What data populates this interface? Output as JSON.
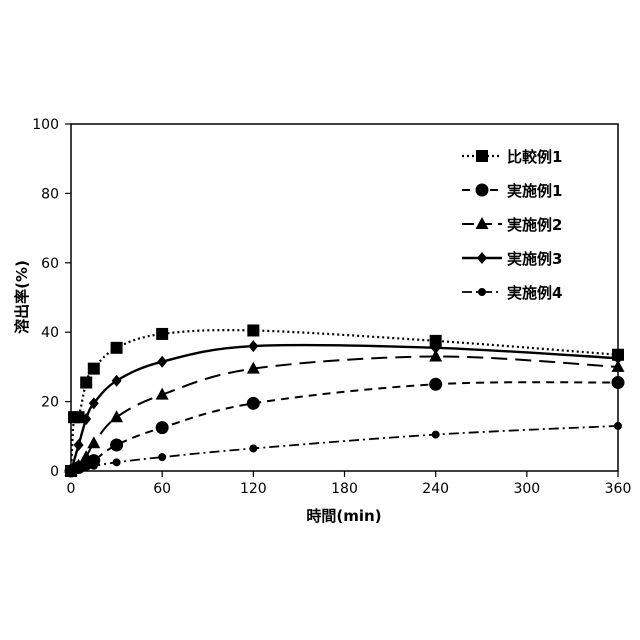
{
  "chart_data": {
    "type": "line",
    "title": "",
    "xlabel": "時間(min)",
    "ylabel": "溶出率(%)",
    "xlim": [
      0,
      360
    ],
    "ylim": [
      0,
      100
    ],
    "x_ticks": [
      0,
      60,
      120,
      180,
      240,
      300,
      360
    ],
    "y_ticks": [
      0,
      20,
      40,
      60,
      80,
      100
    ],
    "grid": false,
    "legend_position": "top-right",
    "series": [
      {
        "name": "比較例1",
        "marker": "square",
        "line": "dotted",
        "points": [
          [
            0,
            0
          ],
          [
            2,
            15.5
          ],
          [
            5,
            15.5
          ],
          [
            10,
            25.5
          ],
          [
            15,
            29.5
          ],
          [
            30,
            35.5
          ],
          [
            60,
            39.5
          ],
          [
            120,
            40.5
          ],
          [
            240,
            37.5
          ],
          [
            360,
            33.5
          ]
        ]
      },
      {
        "name": "実施例1",
        "marker": "circle",
        "line": "dashed",
        "points": [
          [
            0,
            0
          ],
          [
            5,
            1
          ],
          [
            10,
            2
          ],
          [
            15,
            3
          ],
          [
            30,
            7.5
          ],
          [
            60,
            12.5
          ],
          [
            120,
            19.5
          ],
          [
            240,
            25
          ],
          [
            360,
            25.5
          ]
        ]
      },
      {
        "name": "実施例2",
        "marker": "triangle",
        "line": "longdash",
        "points": [
          [
            0,
            0
          ],
          [
            5,
            1.5
          ],
          [
            10,
            4
          ],
          [
            15,
            8
          ],
          [
            30,
            15.5
          ],
          [
            60,
            22
          ],
          [
            120,
            29.5
          ],
          [
            240,
            33
          ],
          [
            360,
            30
          ]
        ]
      },
      {
        "name": "実施例3",
        "marker": "diamond",
        "line": "solid",
        "points": [
          [
            0,
            0
          ],
          [
            5,
            7.5
          ],
          [
            10,
            15
          ],
          [
            15,
            19.5
          ],
          [
            30,
            26
          ],
          [
            60,
            31.5
          ],
          [
            120,
            36
          ],
          [
            240,
            35.5
          ],
          [
            360,
            32.5
          ]
        ]
      },
      {
        "name": "実施例4",
        "marker": "small-circle",
        "line": "dashdot",
        "points": [
          [
            0,
            0
          ],
          [
            5,
            0.5
          ],
          [
            10,
            1.2
          ],
          [
            15,
            1.5
          ],
          [
            30,
            2.5
          ],
          [
            60,
            4
          ],
          [
            120,
            6.5
          ],
          [
            240,
            10.5
          ],
          [
            360,
            13
          ]
        ]
      }
    ]
  }
}
